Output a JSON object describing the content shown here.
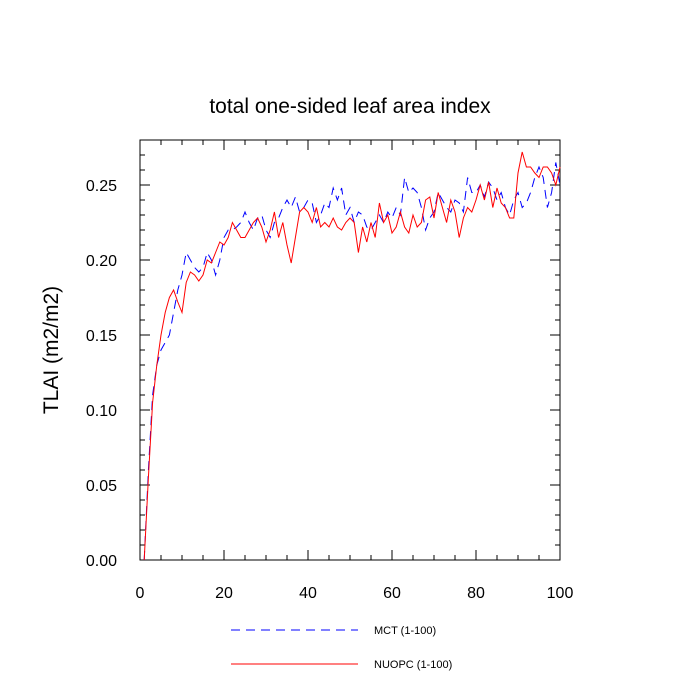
{
  "chart_data": {
    "type": "line",
    "title": "total one-sided leaf area index",
    "xlabel": "",
    "ylabel": "TLAI  (m2/m2)",
    "xlim": [
      0,
      100
    ],
    "ylim": [
      0,
      0.28
    ],
    "x_ticks": [
      0,
      20,
      40,
      60,
      80,
      100
    ],
    "y_ticks": [
      0.0,
      0.05,
      0.1,
      0.15,
      0.2,
      0.25
    ],
    "x_tick_labels": [
      "0",
      "20",
      "40",
      "60",
      "80",
      "100"
    ],
    "y_tick_labels": [
      "0.00",
      "0.05",
      "0.10",
      "0.15",
      "0.20",
      "0.25"
    ],
    "grid": false,
    "legend_position": "bottom",
    "series": [
      {
        "name": "MCT (1-100)",
        "color": "#0000ff",
        "dash": "dashed",
        "x": [
          1,
          2,
          3,
          4,
          5,
          6,
          7,
          8,
          9,
          10,
          11,
          12,
          13,
          14,
          15,
          16,
          17,
          18,
          19,
          20,
          21,
          22,
          23,
          24,
          25,
          26,
          27,
          28,
          29,
          30,
          31,
          32,
          33,
          34,
          35,
          36,
          37,
          38,
          39,
          40,
          41,
          42,
          43,
          44,
          45,
          46,
          47,
          48,
          49,
          50,
          51,
          52,
          53,
          54,
          55,
          56,
          57,
          58,
          59,
          60,
          61,
          62,
          63,
          64,
          65,
          66,
          67,
          68,
          69,
          70,
          71,
          72,
          73,
          74,
          75,
          76,
          77,
          78,
          79,
          80,
          81,
          82,
          83,
          84,
          85,
          86,
          87,
          88,
          89,
          90,
          91,
          92,
          93,
          94,
          95,
          96,
          97,
          98,
          99,
          100
        ],
        "y": [
          0.0,
          0.06,
          0.11,
          0.13,
          0.14,
          0.145,
          0.15,
          0.165,
          0.18,
          0.19,
          0.205,
          0.2,
          0.195,
          0.192,
          0.195,
          0.205,
          0.2,
          0.19,
          0.2,
          0.215,
          0.22,
          0.22,
          0.222,
          0.225,
          0.232,
          0.225,
          0.22,
          0.228,
          0.23,
          0.22,
          0.215,
          0.225,
          0.228,
          0.235,
          0.24,
          0.235,
          0.242,
          0.232,
          0.235,
          0.24,
          0.238,
          0.225,
          0.23,
          0.238,
          0.235,
          0.248,
          0.24,
          0.248,
          0.23,
          0.235,
          0.225,
          0.232,
          0.23,
          0.222,
          0.22,
          0.225,
          0.23,
          0.225,
          0.232,
          0.228,
          0.235,
          0.23,
          0.255,
          0.245,
          0.248,
          0.245,
          0.235,
          0.22,
          0.228,
          0.232,
          0.245,
          0.24,
          0.235,
          0.232,
          0.24,
          0.238,
          0.232,
          0.255,
          0.245,
          0.245,
          0.25,
          0.242,
          0.252,
          0.248,
          0.24,
          0.245,
          0.235,
          0.23,
          0.24,
          0.245,
          0.235,
          0.238,
          0.245,
          0.255,
          0.262,
          0.255,
          0.235,
          0.245,
          0.265,
          0.25
        ]
      },
      {
        "name": "NUOPC (1-100)",
        "color": "#ff0000",
        "dash": "solid",
        "x": [
          1,
          2,
          3,
          4,
          5,
          6,
          7,
          8,
          9,
          10,
          11,
          12,
          13,
          14,
          15,
          16,
          17,
          18,
          19,
          20,
          21,
          22,
          23,
          24,
          25,
          26,
          27,
          28,
          29,
          30,
          31,
          32,
          33,
          34,
          35,
          36,
          37,
          38,
          39,
          40,
          41,
          42,
          43,
          44,
          45,
          46,
          47,
          48,
          49,
          50,
          51,
          52,
          53,
          54,
          55,
          56,
          57,
          58,
          59,
          60,
          61,
          62,
          63,
          64,
          65,
          66,
          67,
          68,
          69,
          70,
          71,
          72,
          73,
          74,
          75,
          76,
          77,
          78,
          79,
          80,
          81,
          82,
          83,
          84,
          85,
          86,
          87,
          88,
          89,
          90,
          91,
          92,
          93,
          94,
          95,
          96,
          97,
          98,
          99,
          100
        ],
        "y": [
          0.0,
          0.055,
          0.105,
          0.13,
          0.15,
          0.165,
          0.175,
          0.18,
          0.172,
          0.165,
          0.185,
          0.192,
          0.19,
          0.186,
          0.19,
          0.2,
          0.198,
          0.205,
          0.212,
          0.21,
          0.215,
          0.225,
          0.22,
          0.215,
          0.215,
          0.22,
          0.225,
          0.228,
          0.222,
          0.212,
          0.22,
          0.232,
          0.215,
          0.225,
          0.21,
          0.198,
          0.215,
          0.232,
          0.235,
          0.232,
          0.225,
          0.235,
          0.222,
          0.225,
          0.222,
          0.228,
          0.222,
          0.22,
          0.225,
          0.228,
          0.225,
          0.205,
          0.222,
          0.212,
          0.225,
          0.215,
          0.238,
          0.225,
          0.23,
          0.218,
          0.222,
          0.232,
          0.222,
          0.218,
          0.23,
          0.222,
          0.225,
          0.24,
          0.242,
          0.228,
          0.245,
          0.235,
          0.225,
          0.24,
          0.232,
          0.215,
          0.228,
          0.235,
          0.232,
          0.24,
          0.25,
          0.24,
          0.252,
          0.235,
          0.248,
          0.238,
          0.235,
          0.228,
          0.228,
          0.258,
          0.272,
          0.262,
          0.262,
          0.258,
          0.255,
          0.262,
          0.262,
          0.258,
          0.25,
          0.262
        ]
      }
    ]
  }
}
